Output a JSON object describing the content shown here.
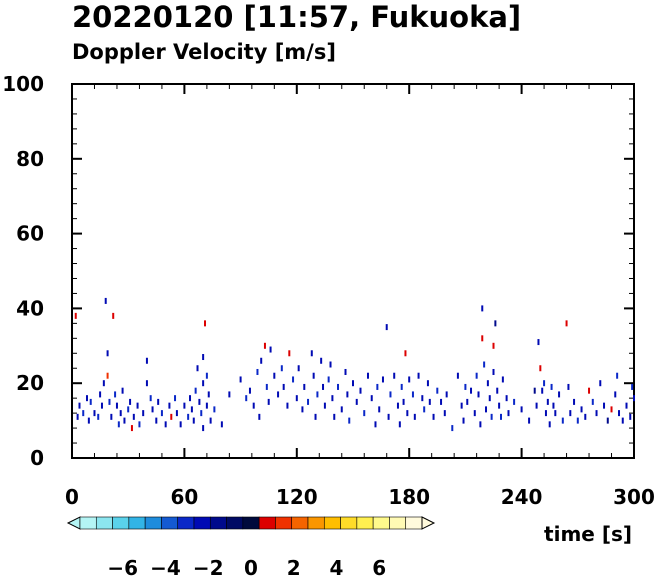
{
  "chart_data": {
    "type": "scatter",
    "title": "20220120 [11:57, Fukuoka]",
    "subtitle": "Doppler Velocity [m/s]",
    "xlabel": "time [s]",
    "ylabel": "",
    "xlim": [
      0,
      300
    ],
    "ylim": [
      0,
      100
    ],
    "x_ticks": [
      "0",
      "60",
      "120",
      "180",
      "240",
      "300"
    ],
    "y_ticks": [
      "0",
      "20",
      "40",
      "60",
      "80",
      "100"
    ],
    "colorbar": {
      "tick_labels": [
        "−6",
        "−4",
        "−2",
        "0",
        "2",
        "4",
        "6"
      ],
      "range": [
        -8,
        8
      ],
      "colors": [
        "#b4f5f5",
        "#8ce6f0",
        "#5ad2eb",
        "#32b4e6",
        "#1e8cdc",
        "#145ad2",
        "#0a28c8",
        "#000ab4",
        "#000a8c",
        "#000a64",
        "#000a3c",
        "#dc0000",
        "#f03200",
        "#f56400",
        "#fa9600",
        "#ffbe00",
        "#ffdc28",
        "#fff050",
        "#fffa8c",
        "#fffab4",
        "#fffadc"
      ],
      "grid": false,
      "legend": "none"
    },
    "points": [
      [
        2,
        38,
        0.8
      ],
      [
        3,
        11,
        -2
      ],
      [
        4,
        14,
        -2.5
      ],
      [
        6,
        12,
        -3
      ],
      [
        8,
        16,
        -2.5
      ],
      [
        9,
        10,
        -2
      ],
      [
        10,
        15,
        -3
      ],
      [
        12,
        12,
        -2
      ],
      [
        14,
        11,
        -3
      ],
      [
        15,
        17,
        -2.5
      ],
      [
        16,
        14,
        -2
      ],
      [
        17,
        20,
        -2.6
      ],
      [
        18,
        42,
        -2
      ],
      [
        19,
        28,
        -2
      ],
      [
        19,
        22,
        1.5
      ],
      [
        20,
        15,
        -3
      ],
      [
        21,
        11,
        -2
      ],
      [
        22,
        38,
        0.8
      ],
      [
        23,
        17,
        -3
      ],
      [
        24,
        14,
        -2.5
      ],
      [
        25,
        9,
        -3
      ],
      [
        26,
        12,
        -2
      ],
      [
        27,
        18,
        -2
      ],
      [
        28,
        10,
        -2.6
      ],
      [
        30,
        13,
        -3
      ],
      [
        31,
        15,
        -2
      ],
      [
        32,
        8,
        0.9
      ],
      [
        33,
        11,
        -2
      ],
      [
        35,
        14,
        -2.5
      ],
      [
        36,
        9,
        -3
      ],
      [
        38,
        12,
        -2
      ],
      [
        40,
        26,
        -2
      ],
      [
        40,
        20,
        -2.5
      ],
      [
        42,
        16,
        -3
      ],
      [
        43,
        13,
        -2
      ],
      [
        45,
        10,
        -2.6
      ],
      [
        46,
        15,
        -2
      ],
      [
        48,
        12,
        -3
      ],
      [
        50,
        9,
        -2
      ],
      [
        52,
        14,
        -2.5
      ],
      [
        53,
        11,
        0.9
      ],
      [
        55,
        16,
        -3
      ],
      [
        56,
        12,
        -2
      ],
      [
        58,
        9,
        -2.5
      ],
      [
        60,
        14,
        -2
      ],
      [
        62,
        11,
        -3
      ],
      [
        63,
        16,
        -2
      ],
      [
        64,
        13,
        -2
      ],
      [
        65,
        10,
        -2.6
      ],
      [
        66,
        18,
        -3
      ],
      [
        67,
        24,
        -2
      ],
      [
        68,
        15,
        -2.5
      ],
      [
        69,
        12,
        -3
      ],
      [
        70,
        27,
        -2
      ],
      [
        70,
        20,
        -2
      ],
      [
        70,
        8,
        -2.6
      ],
      [
        71,
        36,
        0.9
      ],
      [
        72,
        22,
        -3
      ],
      [
        72,
        14,
        -2
      ],
      [
        73,
        17,
        -2.5
      ],
      [
        74,
        10,
        -2
      ],
      [
        76,
        13,
        -3
      ],
      [
        80,
        9,
        -2
      ],
      [
        84,
        17,
        -2.5
      ],
      [
        90,
        21,
        -2
      ],
      [
        93,
        16,
        -3
      ],
      [
        95,
        18,
        -2.6
      ],
      [
        97,
        14,
        -2
      ],
      [
        99,
        23,
        -3
      ],
      [
        100,
        11,
        -2
      ],
      [
        101,
        26,
        -2
      ],
      [
        103,
        30,
        0.9
      ],
      [
        104,
        19,
        -3
      ],
      [
        105,
        15,
        -2.5
      ],
      [
        106,
        29,
        -2
      ],
      [
        108,
        22,
        -2
      ],
      [
        110,
        17,
        -2.6
      ],
      [
        112,
        24,
        -3
      ],
      [
        113,
        19,
        -2
      ],
      [
        115,
        14,
        -2.5
      ],
      [
        116,
        28,
        0.9
      ],
      [
        118,
        21,
        -3
      ],
      [
        120,
        16,
        -2
      ],
      [
        121,
        24,
        -2.5
      ],
      [
        123,
        13,
        -2
      ],
      [
        124,
        19,
        -2.6
      ],
      [
        126,
        15,
        -3
      ],
      [
        128,
        28,
        -2
      ],
      [
        129,
        22,
        -2
      ],
      [
        130,
        11,
        -2.5
      ],
      [
        131,
        17,
        -3
      ],
      [
        133,
        26,
        -2
      ],
      [
        134,
        19,
        -2.6
      ],
      [
        135,
        14,
        -2
      ],
      [
        137,
        21,
        -3
      ],
      [
        138,
        25,
        -2.5
      ],
      [
        139,
        16,
        -2
      ],
      [
        140,
        11,
        -2
      ],
      [
        142,
        19,
        -3
      ],
      [
        144,
        13,
        -2.6
      ],
      [
        146,
        23,
        -2
      ],
      [
        147,
        17,
        -2.5
      ],
      [
        148,
        10,
        -3
      ],
      [
        150,
        20,
        -2
      ],
      [
        152,
        15,
        -2
      ],
      [
        154,
        18,
        -2.6
      ],
      [
        156,
        12,
        -3
      ],
      [
        158,
        22,
        -2.5
      ],
      [
        160,
        16,
        -2
      ],
      [
        162,
        9,
        -2
      ],
      [
        163,
        19,
        -3
      ],
      [
        164,
        13,
        -2.6
      ],
      [
        166,
        21,
        -2
      ],
      [
        168,
        35,
        -2
      ],
      [
        169,
        11,
        -2.5
      ],
      [
        170,
        17,
        -3
      ],
      [
        172,
        22,
        -2
      ],
      [
        174,
        14,
        -2.6
      ],
      [
        175,
        9,
        -2
      ],
      [
        176,
        19,
        -3
      ],
      [
        177,
        15,
        -2.5
      ],
      [
        178,
        28,
        0.9
      ],
      [
        179,
        12,
        -2
      ],
      [
        180,
        21,
        -2
      ],
      [
        182,
        17,
        -3
      ],
      [
        183,
        11,
        -2.6
      ],
      [
        185,
        22,
        -2
      ],
      [
        187,
        16,
        -2.5
      ],
      [
        188,
        13,
        -3
      ],
      [
        190,
        20,
        -2
      ],
      [
        191,
        15,
        -2
      ],
      [
        193,
        11,
        -2.6
      ],
      [
        195,
        18,
        -3
      ],
      [
        197,
        15,
        -2
      ],
      [
        199,
        12,
        -2.5
      ],
      [
        200,
        17,
        -2
      ],
      [
        203,
        8,
        -3
      ],
      [
        206,
        22,
        -2.6
      ],
      [
        208,
        14,
        -2
      ],
      [
        209,
        10,
        -2.5
      ],
      [
        210,
        19,
        -3
      ],
      [
        211,
        15,
        -2
      ],
      [
        213,
        18,
        -2
      ],
      [
        215,
        12,
        -2.6
      ],
      [
        216,
        22,
        -3
      ],
      [
        217,
        17,
        -2.5
      ],
      [
        218,
        9,
        -2
      ],
      [
        219,
        40,
        -2
      ],
      [
        219,
        32,
        0.9
      ],
      [
        220,
        25,
        -3
      ],
      [
        221,
        13,
        -2
      ],
      [
        222,
        20,
        -2.6
      ],
      [
        223,
        16,
        -2.5
      ],
      [
        224,
        11,
        -3
      ],
      [
        225,
        30,
        0.9
      ],
      [
        225,
        23,
        -2
      ],
      [
        226,
        36,
        -1.2
      ],
      [
        227,
        18,
        -2
      ],
      [
        228,
        14,
        -2.6
      ],
      [
        229,
        11,
        -3
      ],
      [
        230,
        21,
        -2
      ],
      [
        232,
        16,
        -2.5
      ],
      [
        233,
        12,
        -2
      ],
      [
        236,
        15,
        -3
      ],
      [
        240,
        13,
        -2.6
      ],
      [
        244,
        10,
        -2
      ],
      [
        247,
        18,
        -1.6
      ],
      [
        248,
        14,
        -2.5
      ],
      [
        249,
        31,
        -2
      ],
      [
        250,
        24,
        0.9
      ],
      [
        251,
        18,
        -2
      ],
      [
        252,
        20,
        -3
      ],
      [
        253,
        12,
        -2.6
      ],
      [
        254,
        15,
        -2
      ],
      [
        255,
        9,
        -2.5
      ],
      [
        256,
        19,
        -3
      ],
      [
        257,
        14,
        -2
      ],
      [
        258,
        12,
        -2
      ],
      [
        260,
        17,
        -2.6
      ],
      [
        262,
        10,
        -3
      ],
      [
        264,
        36,
        0.9
      ],
      [
        265,
        19,
        -2
      ],
      [
        266,
        12,
        -2.5
      ],
      [
        268,
        15,
        -2
      ],
      [
        270,
        10,
        -3
      ],
      [
        272,
        13,
        -2.6
      ],
      [
        274,
        11,
        -2
      ],
      [
        276,
        18,
        0.9
      ],
      [
        278,
        15,
        -3
      ],
      [
        280,
        12,
        -2
      ],
      [
        282,
        20,
        -2.5
      ],
      [
        284,
        14,
        -2
      ],
      [
        286,
        10,
        -1.2
      ],
      [
        288,
        13,
        0.9
      ],
      [
        290,
        17,
        -2
      ],
      [
        291,
        22,
        -3
      ],
      [
        292,
        12,
        -2.6
      ],
      [
        294,
        10,
        -2
      ],
      [
        296,
        14,
        -2.5
      ],
      [
        298,
        11,
        -2
      ],
      [
        299,
        19,
        -3
      ],
      [
        300,
        16,
        -2
      ]
    ]
  }
}
